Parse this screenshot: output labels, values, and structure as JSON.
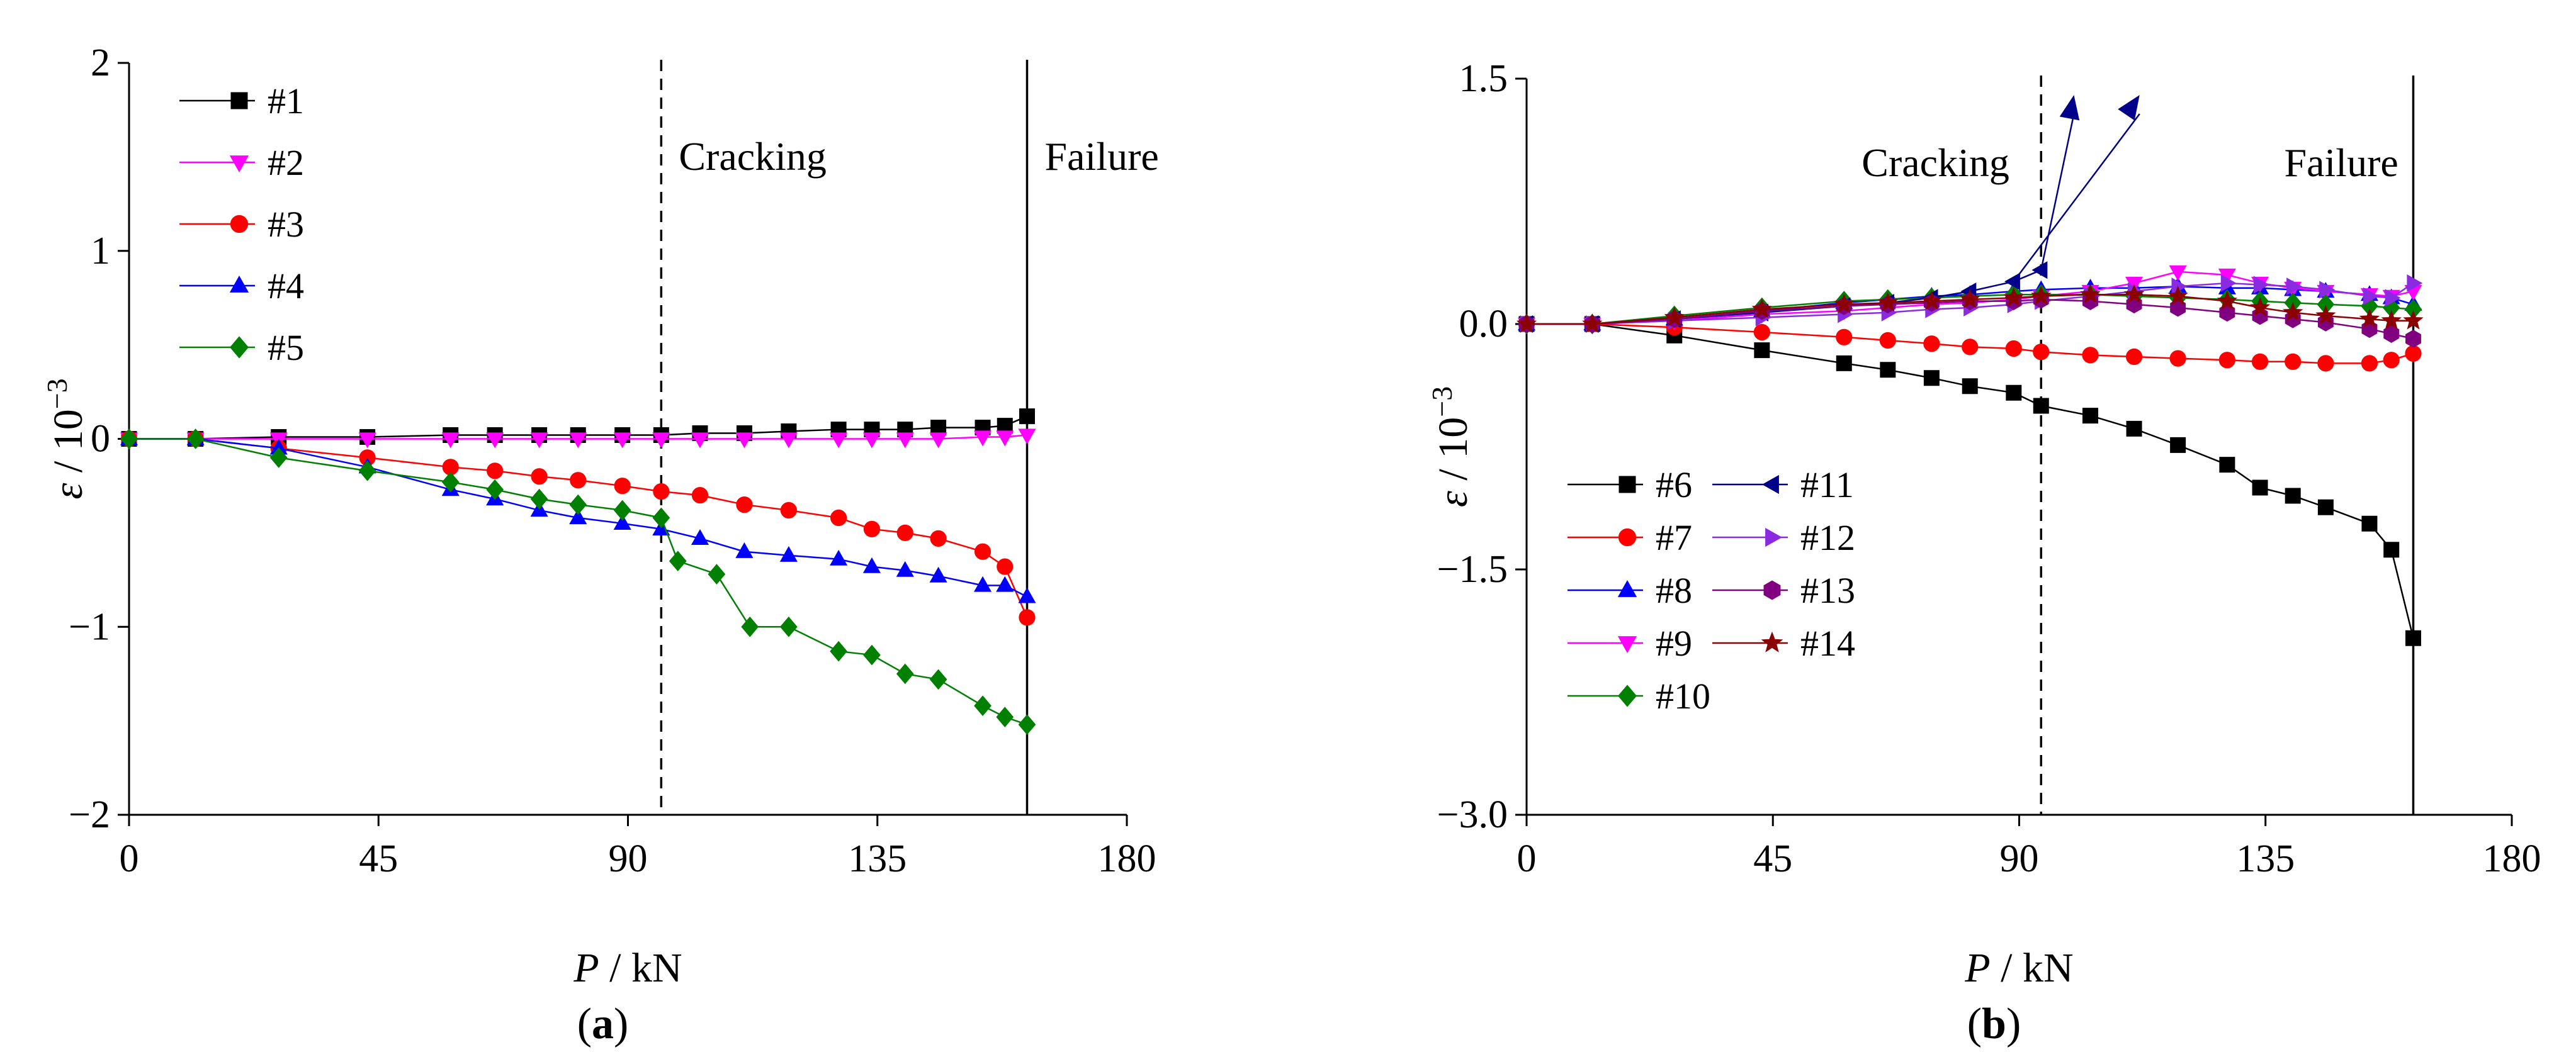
{
  "chart_data": [
    {
      "panel": "(a)",
      "panel_label_pre": "(",
      "panel_label_letter": "a",
      "panel_label_post": ")",
      "type": "line",
      "title": "",
      "xlabel_var": "P",
      "xlabel_unit": " / kN",
      "ylabel_var": "ε",
      "ylabel_unit": " / 10",
      "ylabel_exp": "−3",
      "xlim": [
        0,
        180
      ],
      "ylim": [
        -2,
        2
      ],
      "xticks": [
        0,
        45,
        90,
        135,
        180
      ],
      "xtick_labels": [
        "0",
        "45",
        "90",
        "135",
        "180"
      ],
      "yticks": [
        -2,
        -1,
        0,
        1,
        2
      ],
      "ytick_labels": [
        "−2",
        "−1",
        "0",
        "1",
        "2"
      ],
      "grid": false,
      "legend_position": "top-left",
      "annotations": [
        {
          "text": "Cracking",
          "x": 96,
          "style": "dashed"
        },
        {
          "text": "Failure",
          "x": 162,
          "style": "solid"
        }
      ],
      "series": [
        {
          "name": "#1",
          "color": "#000000",
          "marker": "square",
          "x": [
            0,
            12,
            27,
            43,
            58,
            66,
            74,
            81,
            89,
            96,
            103,
            111,
            119,
            128,
            134,
            140,
            146,
            154,
            158,
            162
          ],
          "y": [
            0,
            0,
            0.01,
            0.01,
            0.02,
            0.02,
            0.02,
            0.02,
            0.02,
            0.02,
            0.03,
            0.03,
            0.04,
            0.05,
            0.05,
            0.05,
            0.06,
            0.06,
            0.07,
            0.12
          ]
        },
        {
          "name": "#2",
          "color": "#ff00ff",
          "marker": "triangle-down",
          "x": [
            0,
            12,
            27,
            43,
            58,
            66,
            74,
            81,
            89,
            96,
            103,
            111,
            119,
            128,
            134,
            140,
            146,
            154,
            158,
            162
          ],
          "y": [
            0,
            0,
            0,
            0,
            0,
            0,
            0,
            0,
            0,
            0,
            0,
            0,
            0,
            0,
            0,
            0,
            0,
            0.01,
            0.01,
            0.02
          ]
        },
        {
          "name": "#3",
          "color": "#ff0000",
          "marker": "circle",
          "x": [
            0,
            12,
            27,
            43,
            58,
            66,
            74,
            81,
            89,
            96,
            103,
            111,
            119,
            128,
            134,
            140,
            146,
            154,
            158,
            162
          ],
          "y": [
            0,
            0,
            -0.05,
            -0.1,
            -0.15,
            -0.17,
            -0.2,
            -0.22,
            -0.25,
            -0.28,
            -0.3,
            -0.35,
            -0.38,
            -0.42,
            -0.48,
            -0.5,
            -0.53,
            -0.6,
            -0.68,
            -0.95
          ]
        },
        {
          "name": "#4",
          "color": "#0000ff",
          "marker": "triangle-up",
          "x": [
            0,
            12,
            27,
            43,
            58,
            66,
            74,
            81,
            89,
            96,
            103,
            111,
            119,
            128,
            134,
            140,
            146,
            154,
            158,
            162
          ],
          "y": [
            0,
            0,
            -0.05,
            -0.15,
            -0.27,
            -0.32,
            -0.38,
            -0.42,
            -0.45,
            -0.48,
            -0.53,
            -0.6,
            -0.62,
            -0.64,
            -0.68,
            -0.7,
            -0.73,
            -0.78,
            -0.78,
            -0.84
          ]
        },
        {
          "name": "#5",
          "color": "#008000",
          "marker": "diamond",
          "x": [
            0,
            12,
            27,
            43,
            58,
            66,
            74,
            81,
            89,
            96,
            99,
            106,
            112,
            119,
            128,
            134,
            140,
            146,
            154,
            158,
            162
          ],
          "y": [
            0,
            0,
            -0.1,
            -0.17,
            -0.23,
            -0.27,
            -0.32,
            -0.35,
            -0.38,
            -0.42,
            -0.65,
            -0.72,
            -1.0,
            -1.0,
            -1.13,
            -1.15,
            -1.25,
            -1.28,
            -1.42,
            -1.48,
            -1.52
          ]
        }
      ]
    },
    {
      "panel": "(b)",
      "panel_label_pre": "(",
      "panel_label_letter": "b",
      "panel_label_post": ")",
      "type": "line",
      "title": "",
      "xlabel_var": "P",
      "xlabel_unit": " / kN",
      "ylabel_var": "ε",
      "ylabel_unit": " / 10",
      "ylabel_exp": "−3",
      "xlim": [
        0,
        180
      ],
      "ylim": [
        -3.0,
        1.5
      ],
      "xticks": [
        0,
        45,
        90,
        135,
        180
      ],
      "xtick_labels": [
        "0",
        "45",
        "90",
        "135",
        "180"
      ],
      "yticks": [
        -3.0,
        -1.5,
        0.0,
        1.5
      ],
      "ytick_labels": [
        "−3.0",
        "−1.5",
        "0.0",
        "1.5"
      ],
      "grid": false,
      "legend_position": "bottom-left",
      "annotations": [
        {
          "text": "Cracking",
          "x": 94,
          "style": "dashed"
        },
        {
          "text": "Failure",
          "x": 162,
          "style": "solid"
        }
      ],
      "series": [
        {
          "name": "#6",
          "color": "#000000",
          "marker": "square",
          "x": [
            0,
            12,
            27,
            43,
            58,
            66,
            74,
            81,
            89,
            94,
            103,
            111,
            119,
            128,
            134,
            140,
            146,
            154,
            158,
            162
          ],
          "y": [
            0,
            0,
            -0.07,
            -0.16,
            -0.24,
            -0.28,
            -0.33,
            -0.38,
            -0.42,
            -0.5,
            -0.56,
            -0.64,
            -0.74,
            -0.86,
            -1.0,
            -1.05,
            -1.12,
            -1.22,
            -1.38,
            -1.92
          ]
        },
        {
          "name": "#7",
          "color": "#ff0000",
          "marker": "circle",
          "x": [
            0,
            12,
            27,
            43,
            58,
            66,
            74,
            81,
            89,
            94,
            103,
            111,
            119,
            128,
            134,
            140,
            146,
            154,
            158,
            162
          ],
          "y": [
            0,
            0,
            -0.02,
            -0.05,
            -0.08,
            -0.1,
            -0.12,
            -0.14,
            -0.15,
            -0.17,
            -0.19,
            -0.2,
            -0.21,
            -0.22,
            -0.23,
            -0.23,
            -0.24,
            -0.24,
            -0.22,
            -0.18
          ]
        },
        {
          "name": "#8",
          "color": "#0000ff",
          "marker": "triangle-up",
          "x": [
            0,
            12,
            27,
            43,
            58,
            66,
            74,
            81,
            89,
            94,
            103,
            111,
            119,
            128,
            134,
            140,
            146,
            154,
            158,
            162
          ],
          "y": [
            0,
            0,
            0.03,
            0.08,
            0.13,
            0.15,
            0.17,
            0.18,
            0.2,
            0.21,
            0.22,
            0.22,
            0.23,
            0.22,
            0.22,
            0.21,
            0.2,
            0.18,
            0.16,
            0.12
          ]
        },
        {
          "name": "#9",
          "color": "#ff00ff",
          "marker": "triangle-down",
          "x": [
            0,
            12,
            27,
            43,
            58,
            66,
            74,
            81,
            89,
            94,
            103,
            111,
            119,
            128,
            134,
            140,
            146,
            154,
            158,
            162
          ],
          "y": [
            0,
            0,
            0.02,
            0.06,
            0.08,
            0.1,
            0.12,
            0.13,
            0.15,
            0.17,
            0.2,
            0.25,
            0.32,
            0.3,
            0.25,
            0.22,
            0.2,
            0.18,
            0.17,
            0.2
          ]
        },
        {
          "name": "#10",
          "color": "#008000",
          "marker": "diamond",
          "x": [
            0,
            12,
            27,
            43,
            58,
            66,
            74,
            81,
            89,
            94,
            103,
            111,
            119,
            128,
            134,
            140,
            146,
            154,
            158,
            162
          ],
          "y": [
            0,
            0,
            0.05,
            0.1,
            0.14,
            0.15,
            0.16,
            0.17,
            0.18,
            0.18,
            0.18,
            0.17,
            0.16,
            0.15,
            0.14,
            0.13,
            0.12,
            0.11,
            0.1,
            0.09
          ]
        },
        {
          "name": "#11",
          "color": "#00008b",
          "marker": "triangle-left",
          "x": [
            0,
            12,
            27,
            43,
            58,
            66,
            74,
            81,
            89,
            94,
            100,
            112
          ],
          "y": [
            0,
            0,
            0.03,
            0.07,
            0.11,
            0.13,
            0.16,
            0.2,
            0.26,
            0.33,
            1.4,
            1.4
          ]
        },
        {
          "name": "#12",
          "color": "#8a2be2",
          "marker": "triangle-right",
          "x": [
            0,
            12,
            27,
            43,
            58,
            66,
            74,
            81,
            89,
            94,
            103,
            111,
            119,
            128,
            134,
            140,
            146,
            154,
            158,
            162
          ],
          "y": [
            0,
            0,
            0.02,
            0.04,
            0.06,
            0.07,
            0.09,
            0.1,
            0.12,
            0.14,
            0.17,
            0.2,
            0.23,
            0.25,
            0.24,
            0.23,
            0.21,
            0.17,
            0.16,
            0.25
          ]
        },
        {
          "name": "#13",
          "color": "#800080",
          "marker": "hexagon",
          "x": [
            0,
            12,
            27,
            43,
            58,
            66,
            74,
            81,
            89,
            94,
            103,
            111,
            119,
            128,
            134,
            140,
            146,
            154,
            158,
            162
          ],
          "y": [
            0,
            0,
            0.03,
            0.08,
            0.11,
            0.12,
            0.13,
            0.14,
            0.14,
            0.15,
            0.14,
            0.12,
            0.1,
            0.07,
            0.05,
            0.03,
            0.01,
            -0.03,
            -0.06,
            -0.09
          ]
        },
        {
          "name": "#14",
          "color": "#8b0000",
          "marker": "star",
          "x": [
            0,
            12,
            27,
            43,
            58,
            66,
            74,
            81,
            89,
            94,
            103,
            111,
            119,
            128,
            134,
            140,
            146,
            154,
            158,
            162
          ],
          "y": [
            0,
            0,
            0.04,
            0.09,
            0.12,
            0.13,
            0.14,
            0.15,
            0.16,
            0.17,
            0.18,
            0.18,
            0.17,
            0.14,
            0.1,
            0.07,
            0.05,
            0.03,
            0.02,
            0.02
          ]
        }
      ]
    }
  ]
}
